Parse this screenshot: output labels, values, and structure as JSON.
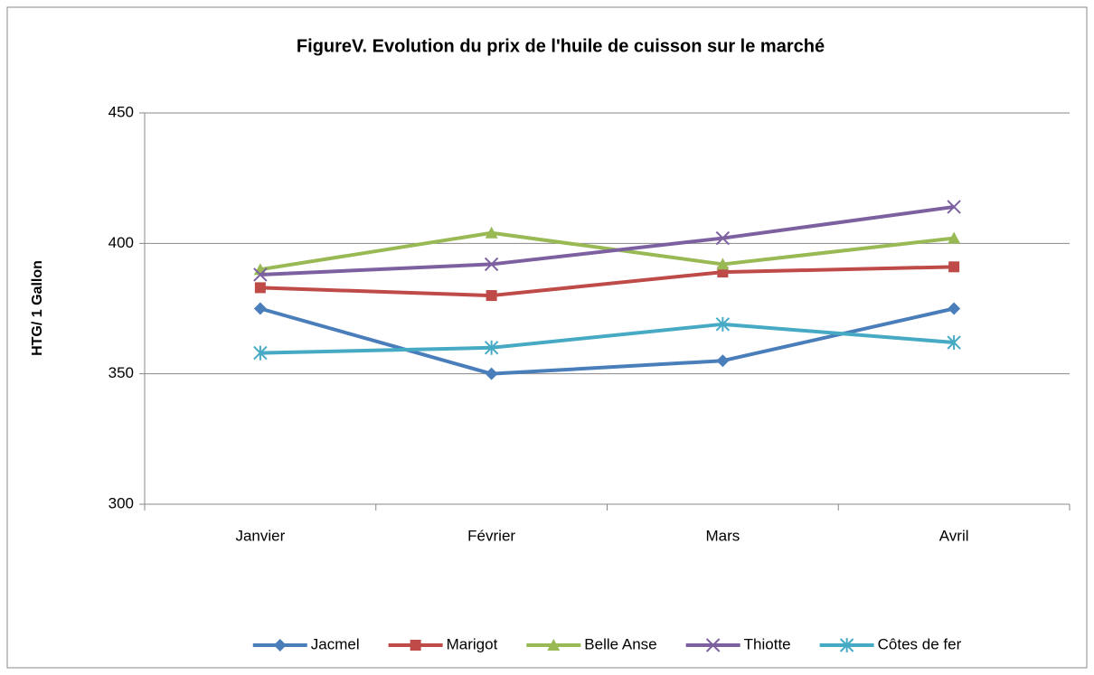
{
  "chart_data": {
    "type": "line",
    "title": "FigureV. Evolution du prix de l'huile de cuisson sur le marché",
    "y_label": "HTG/ 1 Gallon",
    "categories": [
      "Janvier",
      "Février",
      "Mars",
      "Avril"
    ],
    "series": [
      {
        "name": "Jacmel",
        "color": "#4a7ebb",
        "marker": "diamond",
        "values": [
          375,
          350,
          355,
          375
        ]
      },
      {
        "name": "Marigot",
        "color": "#be4b48",
        "marker": "square",
        "values": [
          383,
          380,
          389,
          391
        ]
      },
      {
        "name": "Belle Anse",
        "color": "#98b954",
        "marker": "triangle",
        "values": [
          390,
          404,
          392,
          402
        ]
      },
      {
        "name": "Thiotte",
        "color": "#7d60a0",
        "marker": "x",
        "values": [
          388,
          392,
          402,
          414
        ]
      },
      {
        "name": "Côtes de fer",
        "color": "#46aac5",
        "marker": "asterisk",
        "values": [
          358,
          360,
          369,
          362
        ]
      }
    ],
    "ylim": [
      300,
      450
    ],
    "yticks": [
      300,
      350,
      400,
      450
    ],
    "grid": true,
    "legend": "bottom"
  }
}
